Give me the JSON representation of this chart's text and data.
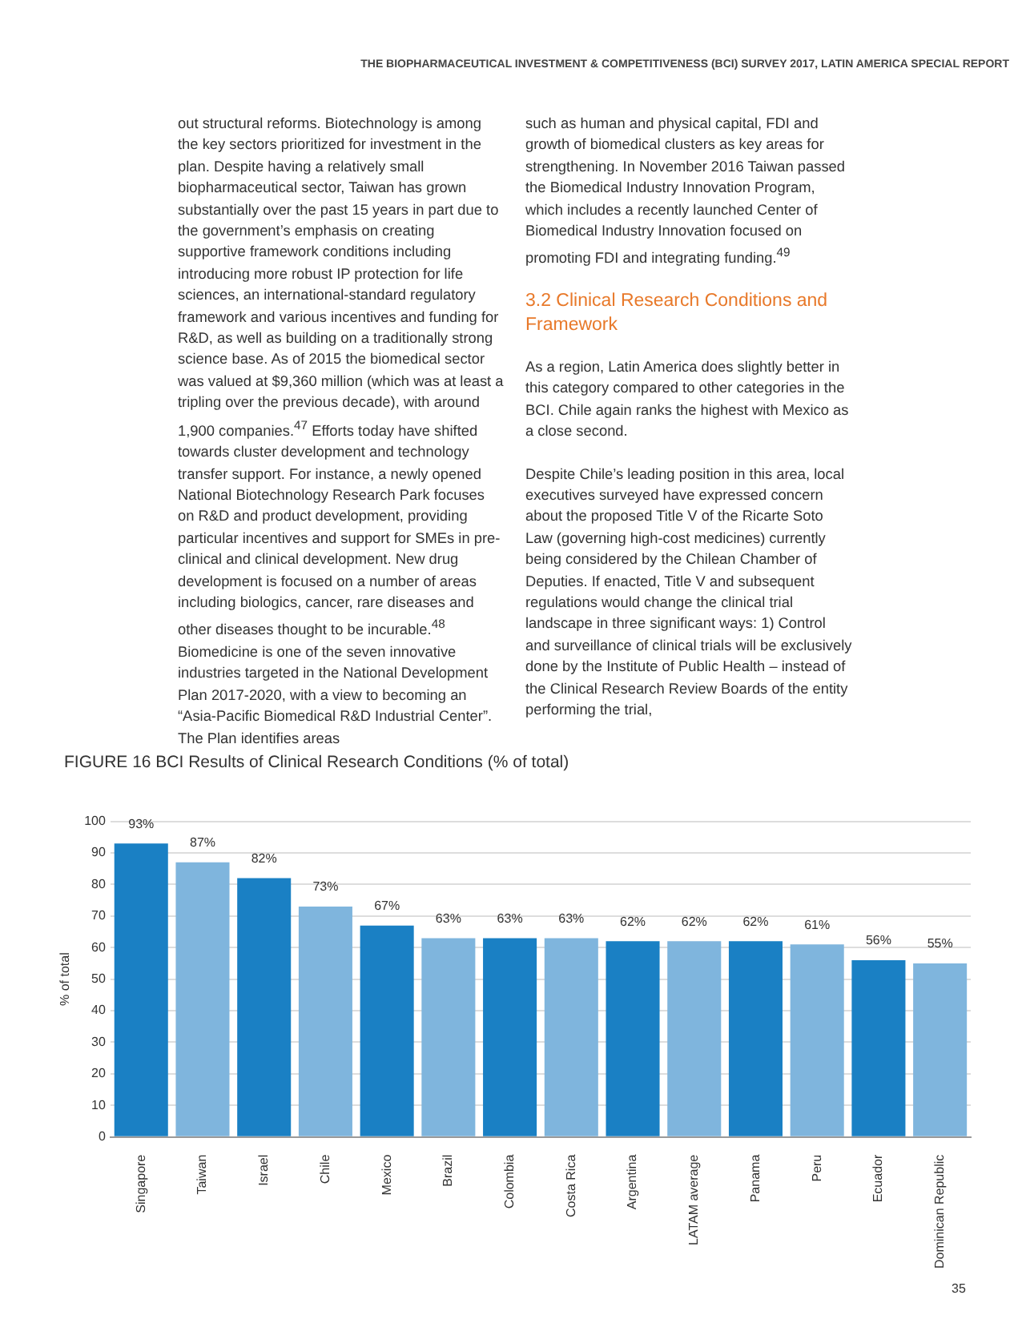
{
  "chart_data": {
    "type": "bar",
    "title": "FIGURE 16 BCI Results of Clinical Research Conditions (% of total)",
    "ylabel": "% of total",
    "categories": [
      "Singapore",
      "Taiwan",
      "Israel",
      "Chile",
      "Mexico",
      "Brazil",
      "Colombia",
      "Costa Rica",
      "Argentina",
      "LATAM average",
      "Panama",
      "Peru",
      "Ecuador",
      "Dominican Republic"
    ],
    "values": [
      93,
      87,
      82,
      73,
      67,
      63,
      63,
      63,
      62,
      62,
      62,
      61,
      56,
      55
    ],
    "value_labels": [
      "93%",
      "87%",
      "82%",
      "73%",
      "67%",
      "63%",
      "63%",
      "63%",
      "62%",
      "62%",
      "62%",
      "61%",
      "56%",
      "55%"
    ],
    "colors": [
      "#1a80c4",
      "#7fb5dd",
      "#1a80c4",
      "#7fb5dd",
      "#1a80c4",
      "#7fb5dd",
      "#1a80c4",
      "#7fb5dd",
      "#1a80c4",
      "#7fb5dd",
      "#1a80c4",
      "#7fb5dd",
      "#1a80c4",
      "#7fb5dd"
    ],
    "ylim": [
      0,
      100
    ],
    "yticks": [
      0,
      10,
      20,
      30,
      40,
      50,
      60,
      70,
      80,
      90,
      100
    ],
    "grid": "y",
    "annotations": [
      "THE BIOPHARMACEUTICAL INVESTMENT & COMPETITIVENESS (BCI) SURVEY 2017, LATIN AMERICA SPECIAL REPORT",
      "out structural reforms. Biotechnology is among the key sectors prioritized for investment in the plan. Despite having a relatively small biopharmaceutical sector, Taiwan has grown substantially over the past 15 years in part due to the government’s emphasis on creating supportive framework conditions including introducing more robust IP protection for life sciences, an international-standard regulatory framework and various incentives and funding for R&D, as well as building on a traditionally strong science base. As of 2015 the biomedical sector was valued at $9,360 million (which was at least a tripling over the previous decade), with around 1,900 companies.$^{47}$ Efforts today have shifted towards cluster development and technology transfer support. For instance, a newly opened National Biotechnology Research Park focuses on R&D and product development, providing particular incentives and support for SMEs in pre-clinical and clinical development. New drug development is focused on a number of areas including biologics, cancer, rare diseases and other diseases thought to be incurable.$^{48}$ Biomedicine is one of the seven innovative industries targeted in the National Development Plan 2017-2020, with a view to becoming an “Asia-Pacific Biomedical R&D Industrial Center”. The Plan identifies areas",
      "such as human and physical capital, FDI and growth of biomedical clusters as key areas for strengthening. In November 2016 Taiwan passed the Biomedical Industry Innovation Program, which includes a recently launched Center of Biomedical Industry Innovation focused on promoting FDI and integrating funding.$^{49}$",
      "3.2 Clinical Research Conditions and Framework",
      "As a region, Latin America does slightly better in this category compared to other categories in the BCI. Chile again ranks the highest with Mexico as a close second.",
      "Despite Chile’s leading position in this area, local executives surveyed have expressed concern about the proposed Title V of the Ricarte Soto Law (governing high-cost medicines) currently being considered by the Chilean Chamber of Deputies. If enacted, Title V and subsequent regulations would change the clinical trial landscape in three significant ways: 1) Control and surveillance of clinical trials will be exclusively done by the Institute of Public Health – instead of the Clinical Research Review Boards of the entity performing the trial,",
      "35"
    ]
  }
}
